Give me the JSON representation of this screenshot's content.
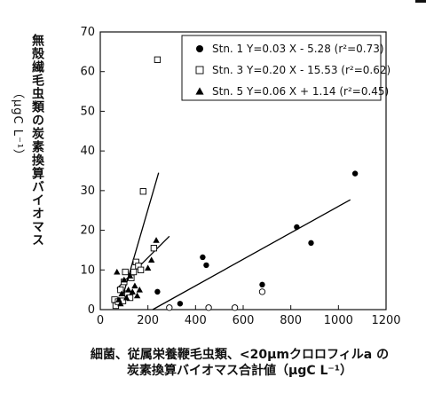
{
  "chart_data": {
    "type": "scatter",
    "title": "",
    "xlabel_lines": [
      "細菌、従属栄養鞭毛虫類、<20μmクロロフィルa の",
      "炭素換算バイオマス合計値（μgC L⁻¹）"
    ],
    "ylabel": "無殻繊毛虫類の炭素換算バイオマス",
    "ylabel_unit": "（μgC L⁻¹）",
    "xlim": [
      0,
      1200
    ],
    "ylim": [
      0,
      70
    ],
    "x_ticks": [
      "0",
      "200",
      "400",
      "600",
      "800",
      "1000",
      "1200"
    ],
    "y_ticks": [
      "0",
      "10",
      "20",
      "30",
      "40",
      "50",
      "60",
      "70"
    ],
    "grid": false,
    "legend_placement": "top-right",
    "series": [
      {
        "name": "Stn. 1 Y=0.03 X - 5.28 (r²=0.73)",
        "marker": "filled-circle",
        "color": "#000000",
        "points": [
          [
            240,
            4.5
          ],
          [
            335,
            1.5
          ],
          [
            430,
            13.2
          ],
          [
            445,
            11.2
          ],
          [
            680,
            6.3
          ],
          [
            825,
            20.8
          ],
          [
            885,
            16.8
          ],
          [
            1070,
            34.3
          ]
        ],
        "fit_line": [
          [
            220,
            0.0
          ],
          [
            1050,
            27.7
          ]
        ]
      },
      {
        "name": "Stn. 3 Y=0.20 X - 15.53 (r²=0.62)",
        "marker": "open-square",
        "color": "#000000",
        "points": [
          [
            60,
            2.5
          ],
          [
            65,
            1.0
          ],
          [
            75,
            2.0
          ],
          [
            85,
            5.0
          ],
          [
            95,
            2.2
          ],
          [
            100,
            7.0
          ],
          [
            105,
            9.5
          ],
          [
            115,
            4.0
          ],
          [
            125,
            3.0
          ],
          [
            130,
            8.0
          ],
          [
            140,
            9.5
          ],
          [
            150,
            12.0
          ],
          [
            160,
            11.0
          ],
          [
            170,
            10.0
          ],
          [
            180,
            29.8
          ],
          [
            225,
            15.5
          ],
          [
            240,
            63.0
          ]
        ],
        "fit_line": [
          [
            95,
            3.5
          ],
          [
            245,
            34.5
          ]
        ]
      },
      {
        "name": "Stn. 5 Y=0.06 X + 1.14 (r²=0.45)",
        "marker": "filled-triangle",
        "color": "#000000",
        "points": [
          [
            70,
            9.5
          ],
          [
            78,
            2.5
          ],
          [
            85,
            1.5
          ],
          [
            90,
            4.0
          ],
          [
            100,
            7.5
          ],
          [
            110,
            3.0
          ],
          [
            118,
            5.0
          ],
          [
            125,
            8.5
          ],
          [
            135,
            4.5
          ],
          [
            145,
            6.0
          ],
          [
            155,
            3.5
          ],
          [
            165,
            5.0
          ],
          [
            200,
            10.5
          ],
          [
            215,
            12.5
          ],
          [
            235,
            17.5
          ]
        ],
        "fit_line": [
          [
            70,
            5.3
          ],
          [
            290,
            18.5
          ]
        ]
      },
      {
        "name": "",
        "marker": "open-circle",
        "color": "#000000",
        "points": [
          [
            290,
            0.5
          ],
          [
            455,
            0.5
          ],
          [
            565,
            0.5
          ],
          [
            680,
            4.5
          ]
        ]
      }
    ]
  }
}
